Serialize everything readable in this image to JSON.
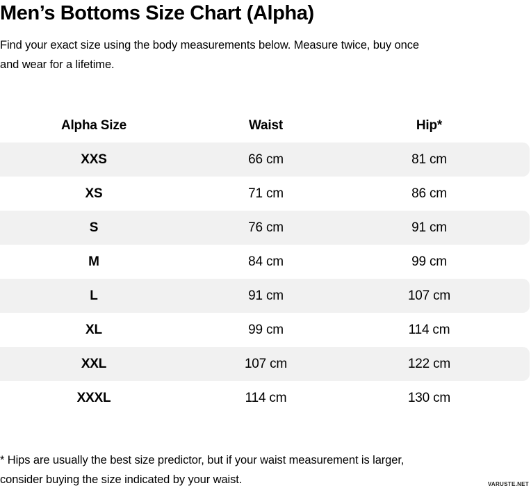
{
  "page": {
    "subtitle": "Find your exact size using the body measurements below. Measure twice, buy once\nand wear for a lifetime.",
    "footnote": "* Hips are usually the best size predictor, but if your waist measurement is larger,\nconsider buying the size indicated by your waist.",
    "watermark": "VARUSTE.NET"
  },
  "chart_data": {
    "type": "table",
    "title": "Men’s Bottoms Size Chart (Alpha)",
    "columns": [
      "Alpha Size",
      "Waist",
      "Hip*"
    ],
    "rows": [
      [
        "XXS",
        "66 cm",
        "81 cm"
      ],
      [
        "XS",
        "71 cm",
        "86 cm"
      ],
      [
        "S",
        "76 cm",
        "91 cm"
      ],
      [
        "M",
        "84 cm",
        "99 cm"
      ],
      [
        "L",
        "91 cm",
        "107 cm"
      ],
      [
        "XL",
        "99 cm",
        "114 cm"
      ],
      [
        "XXL",
        "107 cm",
        "122 cm"
      ],
      [
        "XXXL",
        "114 cm",
        "130 cm"
      ]
    ],
    "units": "cm",
    "stripe_color": "#f1f1f1",
    "text_color": "#000000",
    "layout": {
      "striped_rows": "odd",
      "header_background": "#ffffff"
    }
  }
}
